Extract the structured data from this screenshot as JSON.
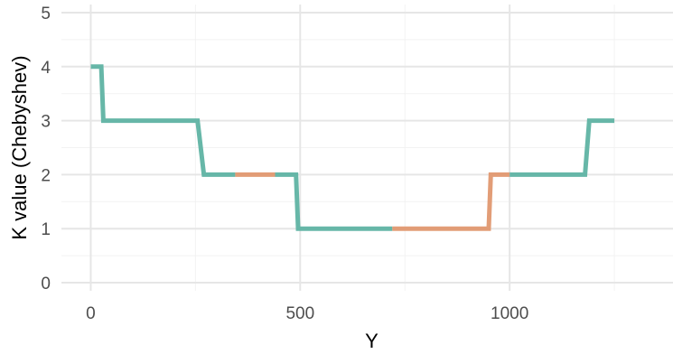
{
  "chart_data": {
    "type": "line",
    "title": "",
    "xlabel": "Y",
    "ylabel": "K value (Chebyshev)",
    "xlim": [
      -70,
      1390
    ],
    "ylim": [
      -0.15,
      5.15
    ],
    "x_ticks": [
      0,
      500,
      1000
    ],
    "x_tick_labels": [
      "0",
      "500",
      "1000"
    ],
    "y_ticks": [
      0,
      1,
      2,
      3,
      4,
      5
    ],
    "y_tick_labels": [
      "0",
      "1",
      "2",
      "3",
      "4",
      "5"
    ],
    "grid": true,
    "legend": "none",
    "colors": {
      "teal": "#5fb3a3",
      "orange": "#e09870",
      "grid_major": "#e6e6e6",
      "grid_minor": "#f2f2f2"
    },
    "series": [
      {
        "color": "teal",
        "points": [
          [
            0,
            4
          ],
          [
            25,
            4
          ],
          [
            30,
            3
          ],
          [
            255,
            3
          ],
          [
            270,
            2
          ],
          [
            345,
            2
          ]
        ]
      },
      {
        "color": "orange",
        "points": [
          [
            345,
            2
          ],
          [
            440,
            2
          ]
        ]
      },
      {
        "color": "teal",
        "points": [
          [
            440,
            2
          ],
          [
            490,
            2
          ],
          [
            495,
            1
          ],
          [
            720,
            1
          ]
        ]
      },
      {
        "color": "orange",
        "points": [
          [
            720,
            1
          ],
          [
            950,
            1
          ],
          [
            955,
            2
          ],
          [
            1000,
            2
          ]
        ]
      },
      {
        "color": "teal",
        "points": [
          [
            1000,
            2
          ],
          [
            1180,
            2
          ],
          [
            1190,
            3
          ],
          [
            1250,
            3
          ]
        ]
      }
    ]
  }
}
